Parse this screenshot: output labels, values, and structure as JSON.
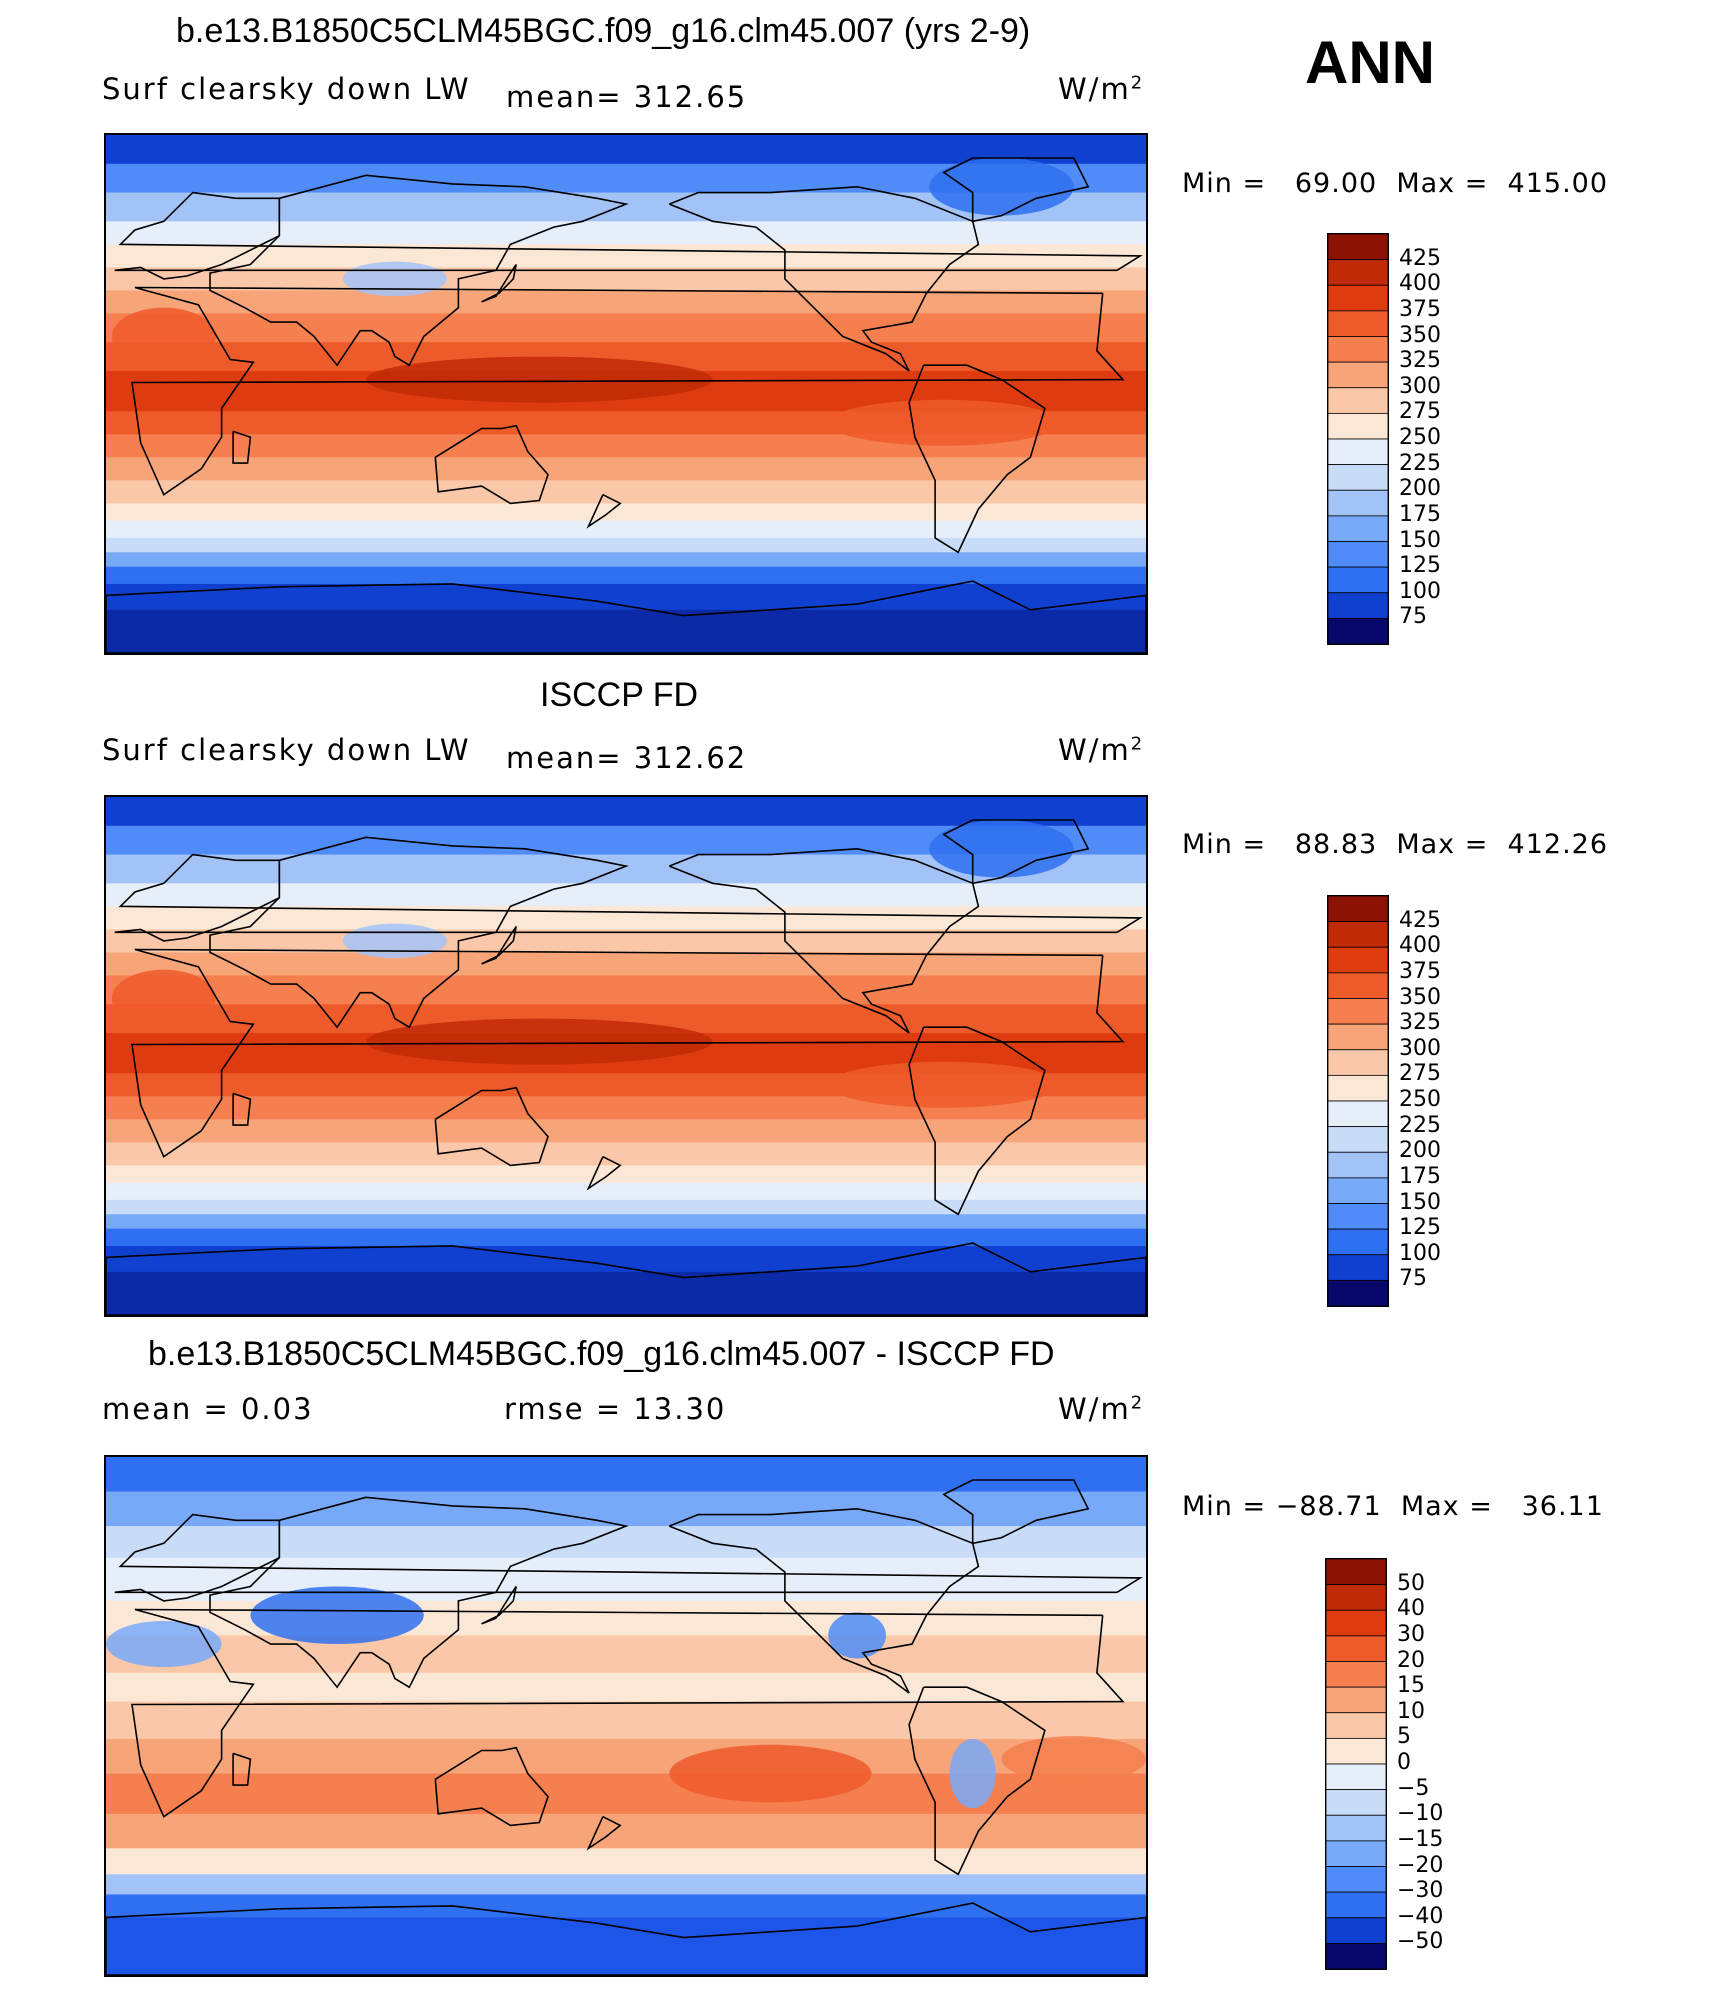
{
  "season": "ANN",
  "colors": {
    "seq": [
      "#08086b",
      "#0c2aa8",
      "#1040d0",
      "#1c55e8",
      "#2f70f0",
      "#4f8cf7",
      "#78a9f8",
      "#a3c3f7",
      "#c8dcf7",
      "#e6eef9",
      "#fbe7d6",
      "#fac8a8",
      "#f7a479",
      "#f57f4e",
      "#ee5b2b",
      "#de3c10",
      "#c12a06",
      "#8c1204"
    ]
  },
  "chart_data": [
    {
      "type": "heatmap",
      "title": "b.e13.B1850C5CLM45BGC.f09_g16.clm45.007 (yrs 2-9)",
      "variable": "Surf clearsky down LW",
      "stat_text": "mean=  312.65",
      "mean": 312.65,
      "units": "W/m",
      "units_sup": "2",
      "min": 69.0,
      "max": 415.0,
      "min_text": "69.00",
      "max_text": "415.00",
      "levels": [
        "425",
        "400",
        "375",
        "350",
        "325",
        "300",
        "275",
        "250",
        "225",
        "200",
        "175",
        "150",
        "125",
        "100",
        "75"
      ],
      "pattern": "abs"
    },
    {
      "type": "heatmap",
      "title": "ISCCP FD",
      "variable": "Surf clearsky down LW",
      "stat_text": "mean=  312.62",
      "mean": 312.62,
      "units": "W/m",
      "units_sup": "2",
      "min": 88.83,
      "max": 412.26,
      "min_text": "88.83",
      "max_text": "412.26",
      "levels": [
        "425",
        "400",
        "375",
        "350",
        "325",
        "300",
        "275",
        "250",
        "225",
        "200",
        "175",
        "150",
        "125",
        "100",
        "75"
      ],
      "pattern": "abs"
    },
    {
      "type": "heatmap",
      "title": "b.e13.B1850C5CLM45BGC.f09_g16.clm45.007 - ISCCP FD",
      "variable": "mean =     0.03",
      "stat_text": "rmse =    13.30",
      "mean": 0.03,
      "rmse": 13.3,
      "units": "W/m",
      "units_sup": "2",
      "min": -88.71,
      "max": 36.11,
      "min_text": "−88.71",
      "max_text": "36.11",
      "levels": [
        "50",
        "40",
        "30",
        "20",
        "15",
        "10",
        "5",
        "0",
        "−5",
        "−10",
        "−15",
        "−20",
        "−30",
        "−40",
        "−50"
      ],
      "pattern": "diff"
    }
  ],
  "labels": {
    "min_label": "Min  =",
    "max_label": "Max  ="
  }
}
